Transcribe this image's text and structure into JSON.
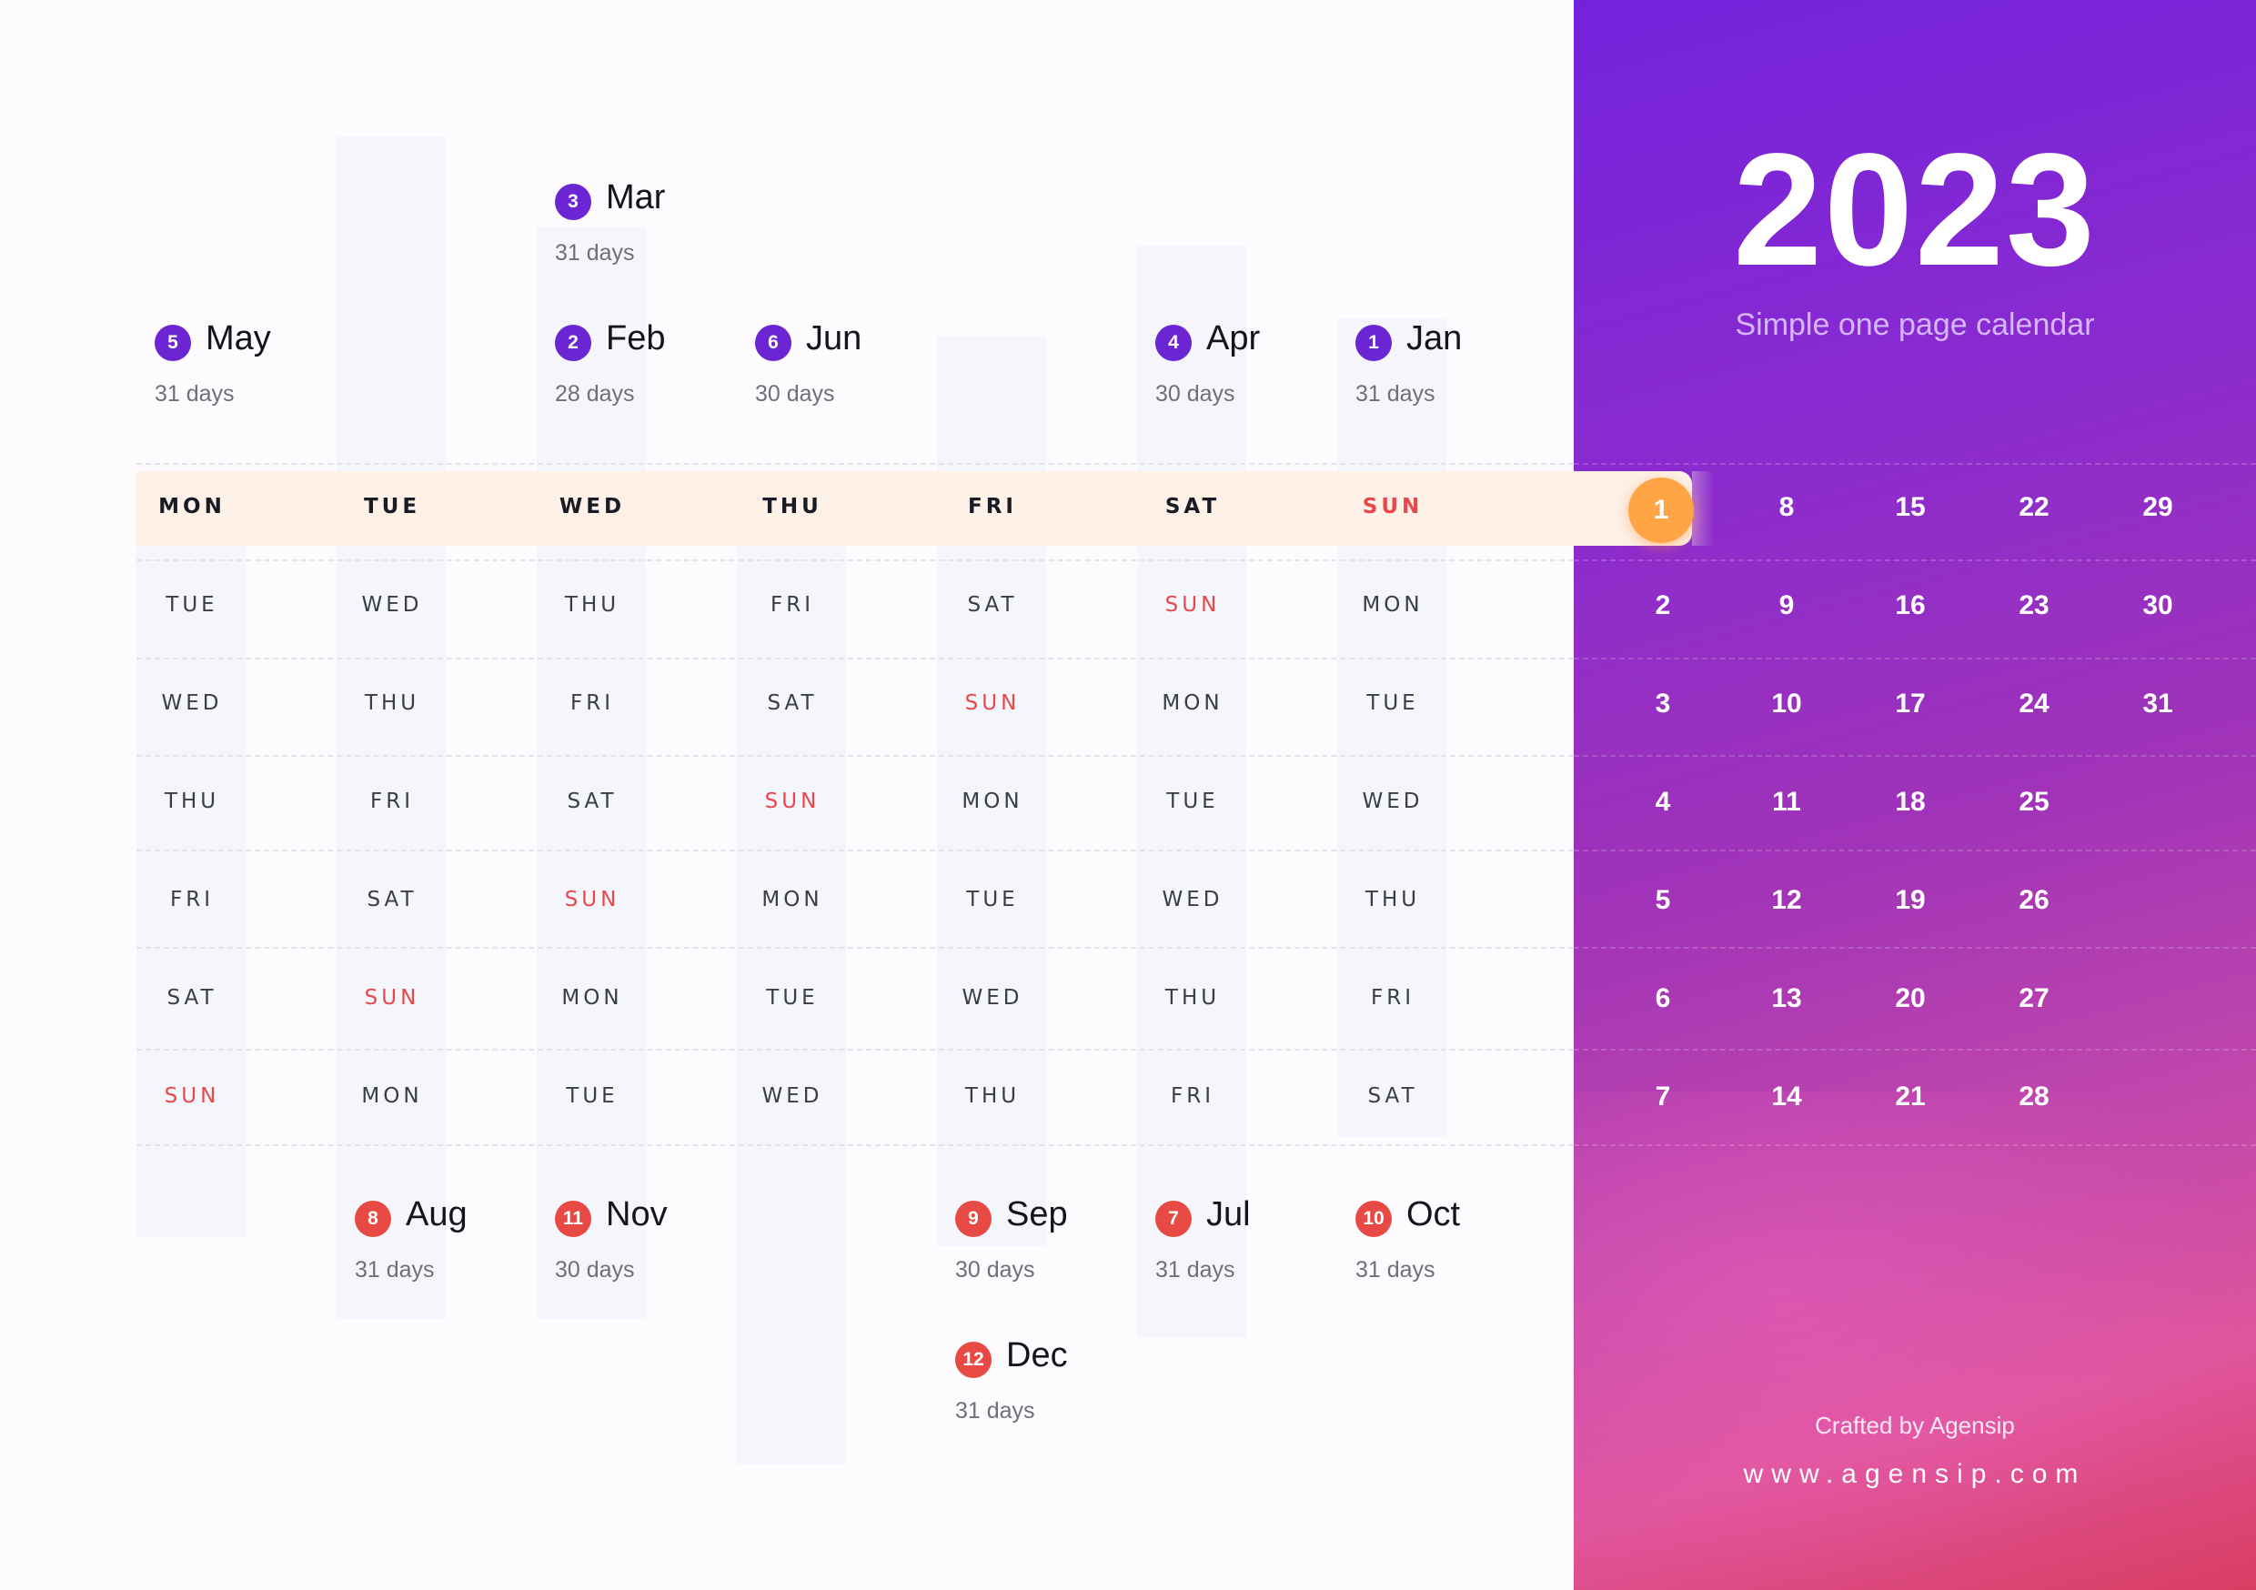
{
  "panel": {
    "year": "2023",
    "subtitle": "Simple one page calendar",
    "crafted": "Crafted by Agensip",
    "website": "www.agensip.com",
    "accent_color": "#ffa545",
    "gradient_top": "#7322dc",
    "gradient_bottom": "#d83e63",
    "dates": [
      [
        "1",
        "8",
        "15",
        "22",
        "29"
      ],
      [
        "2",
        "9",
        "16",
        "23",
        "30"
      ],
      [
        "3",
        "10",
        "17",
        "24",
        "31"
      ],
      [
        "4",
        "11",
        "18",
        "25",
        ""
      ],
      [
        "5",
        "12",
        "19",
        "26",
        ""
      ],
      [
        "6",
        "13",
        "20",
        "27",
        ""
      ],
      [
        "7",
        "14",
        "21",
        "28",
        ""
      ]
    ]
  },
  "weekday_grid": [
    [
      "MON",
      "TUE",
      "WED",
      "THU",
      "FRI",
      "SAT",
      "SUN"
    ],
    [
      "TUE",
      "WED",
      "THU",
      "FRI",
      "SAT",
      "SUN",
      "MON"
    ],
    [
      "WED",
      "THU",
      "FRI",
      "SAT",
      "SUN",
      "MON",
      "TUE"
    ],
    [
      "THU",
      "FRI",
      "SAT",
      "SUN",
      "MON",
      "TUE",
      "WED"
    ],
    [
      "FRI",
      "SAT",
      "SUN",
      "MON",
      "TUE",
      "WED",
      "THU"
    ],
    [
      "SAT",
      "SUN",
      "MON",
      "TUE",
      "WED",
      "THU",
      "FRI"
    ],
    [
      "SUN",
      "MON",
      "TUE",
      "WED",
      "THU",
      "FRI",
      "SAT"
    ]
  ],
  "sunday_color": "#e8484b",
  "months_top": [
    {
      "num": "3",
      "name": "Mar",
      "days": "31 days"
    },
    {
      "num": "5",
      "name": "May",
      "days": "31 days"
    },
    {
      "num": "2",
      "name": "Feb",
      "days": "28 days"
    },
    {
      "num": "6",
      "name": "Jun",
      "days": "30 days"
    },
    {
      "num": "4",
      "name": "Apr",
      "days": "30 days"
    },
    {
      "num": "1",
      "name": "Jan",
      "days": "31 days"
    }
  ],
  "months_bottom": [
    {
      "num": "8",
      "name": "Aug",
      "days": "31 days"
    },
    {
      "num": "11",
      "name": "Nov",
      "days": "30 days"
    },
    {
      "num": "9",
      "name": "Sep",
      "days": "30 days"
    },
    {
      "num": "7",
      "name": "Jul",
      "days": "31 days"
    },
    {
      "num": "10",
      "name": "Oct",
      "days": "31 days"
    },
    {
      "num": "12",
      "name": "Dec",
      "days": "31 days"
    }
  ]
}
